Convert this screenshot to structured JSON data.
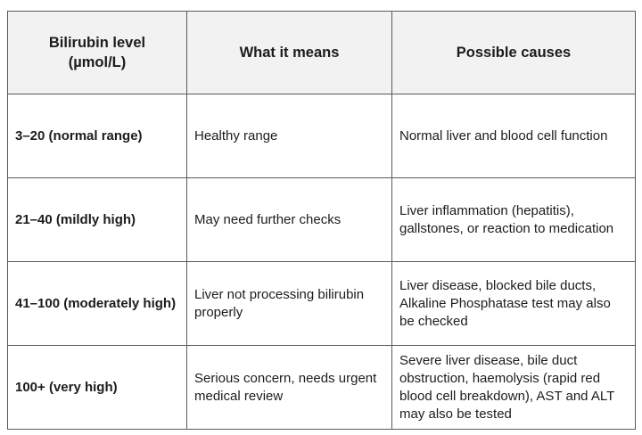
{
  "table": {
    "headers": [
      {
        "line1": "Bilirubin level",
        "line2": "(µmol/L)"
      },
      {
        "line1": "What it means"
      },
      {
        "line1": "Possible causes"
      }
    ],
    "rows": [
      {
        "level": "3–20 (normal range)",
        "meaning": "Healthy range",
        "causes": "Normal liver and blood cell function"
      },
      {
        "level": "21–40 (mildly high)",
        "meaning": "May need further checks",
        "causes": "Liver inflammation (hepatitis), gallstones, or reaction to medication"
      },
      {
        "level": "41–100 (moderately high)",
        "meaning": "Liver not processing bilirubin properly",
        "causes": "Liver disease, blocked bile ducts, Alkaline Phosphatase test may also be checked"
      },
      {
        "level": "100+ (very high)",
        "meaning": "Serious concern, needs urgent medical review",
        "causes": "Severe liver disease, bile duct obstruction, haemolysis (rapid red blood cell breakdown), AST and ALT may also be tested"
      }
    ]
  }
}
